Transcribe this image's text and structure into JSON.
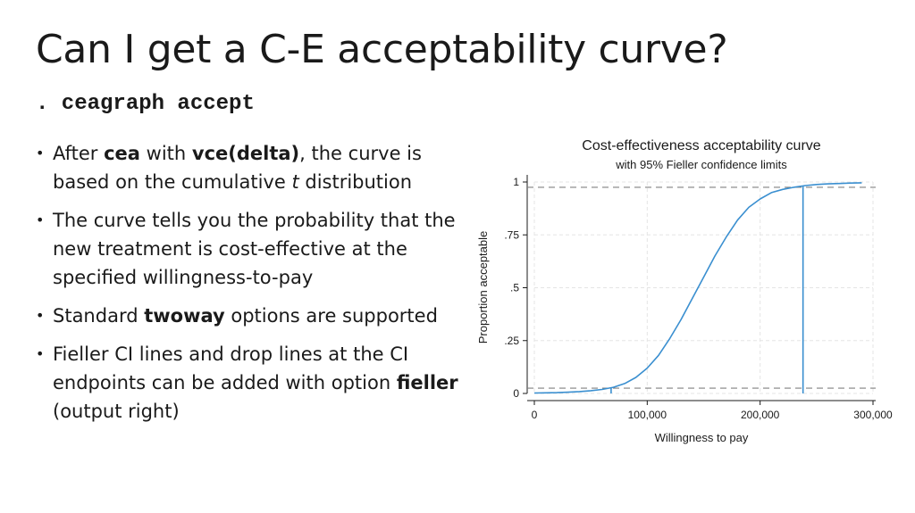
{
  "slide": {
    "title": "Can I get a C-E acceptability curve?",
    "command": ". ceagraph accept"
  },
  "bullets": [
    {
      "parts": [
        {
          "t": "After ",
          "s": "n"
        },
        {
          "t": "cea",
          "s": "b"
        },
        {
          "t": " with ",
          "s": "n"
        },
        {
          "t": "vce(delta)",
          "s": "b"
        },
        {
          "t": ", the curve is based on the cumulative ",
          "s": "n"
        },
        {
          "t": "t",
          "s": "i"
        },
        {
          "t": " distribution",
          "s": "n"
        }
      ]
    },
    {
      "parts": [
        {
          "t": "The curve tells you the probability that the new treatment is cost-effective at the specified willingness-to-pay",
          "s": "n"
        }
      ]
    },
    {
      "parts": [
        {
          "t": "Standard ",
          "s": "n"
        },
        {
          "t": "twoway",
          "s": "b"
        },
        {
          "t": " options are supported",
          "s": "n"
        }
      ]
    },
    {
      "parts": [
        {
          "t": "Fieller CI lines and drop lines at the CI endpoints can be added with option ",
          "s": "n"
        },
        {
          "t": "fieller",
          "s": "b"
        },
        {
          "t": " (output right)",
          "s": "n"
        }
      ]
    }
  ],
  "chart_data": {
    "type": "line",
    "title": "Cost-effectiveness acceptability curve",
    "subtitle": "with 95% Fieller confidence limits",
    "xlabel": "Willingness to pay",
    "ylabel": "Proportion acceptable",
    "xlim": [
      0,
      300000
    ],
    "ylim": [
      0,
      1
    ],
    "xticks": [
      {
        "v": 0,
        "label": "0"
      },
      {
        "v": 100000,
        "label": "100,000"
      },
      {
        "v": 200000,
        "label": "200,000"
      },
      {
        "v": 300000,
        "label": "300,000"
      }
    ],
    "yticks": [
      {
        "v": 0,
        "label": "0"
      },
      {
        "v": 0.25,
        "label": ".25"
      },
      {
        "v": 0.5,
        "label": ".5"
      },
      {
        "v": 0.75,
        "label": ".75"
      },
      {
        "v": 1,
        "label": "1"
      }
    ],
    "grid": true,
    "x": [
      0,
      10000,
      20000,
      30000,
      40000,
      50000,
      60000,
      70000,
      80000,
      90000,
      100000,
      110000,
      120000,
      130000,
      140000,
      150000,
      160000,
      170000,
      180000,
      190000,
      200000,
      210000,
      220000,
      230000,
      240000,
      250000,
      260000,
      270000,
      280000,
      290000
    ],
    "y": [
      0.002,
      0.003,
      0.004,
      0.006,
      0.009,
      0.013,
      0.019,
      0.029,
      0.047,
      0.076,
      0.12,
      0.18,
      0.26,
      0.35,
      0.45,
      0.55,
      0.65,
      0.74,
      0.82,
      0.88,
      0.92,
      0.95,
      0.965,
      0.975,
      0.983,
      0.988,
      0.991,
      0.993,
      0.995,
      0.996
    ],
    "ci_levels": [
      0.025,
      0.975
    ],
    "drop_lines_x": [
      68000,
      238000
    ],
    "line_color": "#3a8fd0",
    "dashed_color": "#808080",
    "grid_color": "#e5e5e5"
  }
}
